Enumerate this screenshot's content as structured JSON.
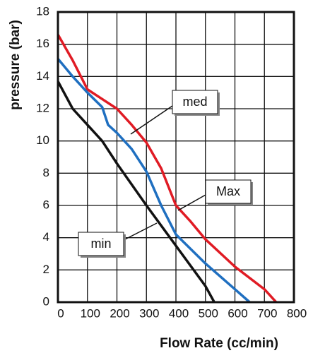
{
  "chart_data": {
    "type": "line",
    "x_label": "Flow Rate (cc/min)",
    "y_label": "pressure (bar)",
    "xlim": [
      0,
      800
    ],
    "ylim": [
      0,
      18
    ],
    "xticks": [
      0,
      100,
      200,
      300,
      400,
      500,
      600,
      700,
      800
    ],
    "yticks": [
      0,
      2,
      4,
      6,
      8,
      10,
      12,
      14,
      16,
      18
    ],
    "grid": true,
    "series": [
      {
        "name": "Max",
        "color": "#e01b24",
        "x": [
          0,
          50,
          100,
          150,
          200,
          250,
          300,
          350,
          400,
          450,
          500,
          600,
          700,
          740
        ],
        "values": [
          16.6,
          15,
          13.2,
          12.6,
          12,
          11,
          9.9,
          8.3,
          6,
          5,
          3.9,
          2.2,
          0.8,
          0
        ]
      },
      {
        "name": "med",
        "color": "#1f6fc0",
        "x": [
          0,
          50,
          100,
          150,
          170,
          200,
          250,
          300,
          350,
          400,
          500,
          600,
          650
        ],
        "values": [
          15.1,
          14,
          13,
          12.1,
          11,
          10.5,
          9.5,
          8.1,
          6,
          4.2,
          2.4,
          0.8,
          0
        ]
      },
      {
        "name": "min",
        "color": "#111111",
        "x": [
          0,
          50,
          100,
          150,
          200,
          300,
          400,
          500,
          530
        ],
        "values": [
          13.7,
          12,
          11,
          10,
          8.6,
          6,
          3.5,
          1,
          0
        ]
      }
    ]
  }
}
